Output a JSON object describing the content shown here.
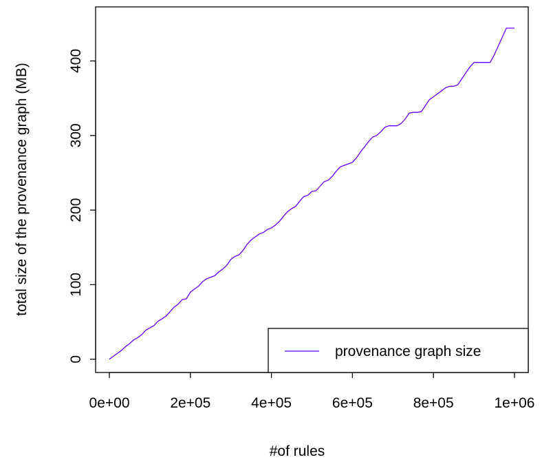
{
  "chart_data": {
    "type": "line",
    "xlabel": "#of rules",
    "ylabel": "total size of the provenance graph (MB)",
    "xlim": [
      -34000,
      1034000
    ],
    "ylim": [
      -17.8,
      472.5
    ],
    "x_ticks": [
      0,
      200000,
      400000,
      600000,
      800000,
      1000000
    ],
    "x_tick_labels": [
      "0e+00",
      "2e+05",
      "4e+05",
      "6e+05",
      "8e+05",
      "1e+06"
    ],
    "y_ticks": [
      0,
      100,
      200,
      300,
      400
    ],
    "y_tick_labels": [
      "0",
      "100",
      "200",
      "300",
      "400"
    ],
    "grid": false,
    "legend_position": "bottom-right",
    "series": [
      {
        "name": "provenance graph size",
        "color": "#6600ff",
        "x": [
          0,
          10000,
          20000,
          30000,
          40000,
          50000,
          60000,
          70000,
          80000,
          90000,
          100000,
          110000,
          120000,
          130000,
          140000,
          150000,
          160000,
          170000,
          180000,
          190000,
          200000,
          210000,
          220000,
          230000,
          240000,
          250000,
          260000,
          270000,
          280000,
          290000,
          300000,
          310000,
          320000,
          330000,
          340000,
          350000,
          360000,
          370000,
          380000,
          390000,
          400000,
          410000,
          420000,
          430000,
          440000,
          450000,
          460000,
          470000,
          480000,
          490000,
          500000,
          510000,
          520000,
          530000,
          540000,
          550000,
          560000,
          570000,
          580000,
          590000,
          600000,
          610000,
          620000,
          630000,
          640000,
          650000,
          660000,
          670000,
          680000,
          690000,
          700000,
          710000,
          720000,
          730000,
          740000,
          750000,
          760000,
          770000,
          780000,
          790000,
          800000,
          810000,
          820000,
          830000,
          840000,
          850000,
          860000,
          870000,
          880000,
          890000,
          900000,
          910000,
          920000,
          930000,
          940000,
          950000,
          960000,
          970000,
          980000,
          990000,
          1000000
        ],
        "y": [
          0,
          4,
          8,
          12,
          17,
          21,
          26,
          29,
          33,
          39,
          42,
          45,
          51,
          54,
          58,
          64,
          70,
          74,
          80,
          81,
          90,
          94,
          98,
          104,
          108,
          110,
          112,
          117,
          121,
          126,
          134,
          138,
          140,
          146,
          154,
          160,
          164,
          168,
          170,
          174,
          176,
          180,
          185,
          192,
          198,
          202,
          205,
          212,
          218,
          220,
          225,
          226,
          232,
          238,
          240,
          245,
          252,
          258,
          260,
          262,
          264,
          270,
          278,
          285,
          292,
          298,
          300,
          305,
          311,
          313,
          313,
          313,
          316,
          322,
          330,
          331,
          331,
          332,
          340,
          348,
          352,
          356,
          360,
          364,
          366,
          366,
          368,
          376,
          384,
          392,
          398,
          398,
          398,
          398,
          398,
          408,
          420,
          432,
          444,
          444,
          444
        ]
      }
    ]
  }
}
